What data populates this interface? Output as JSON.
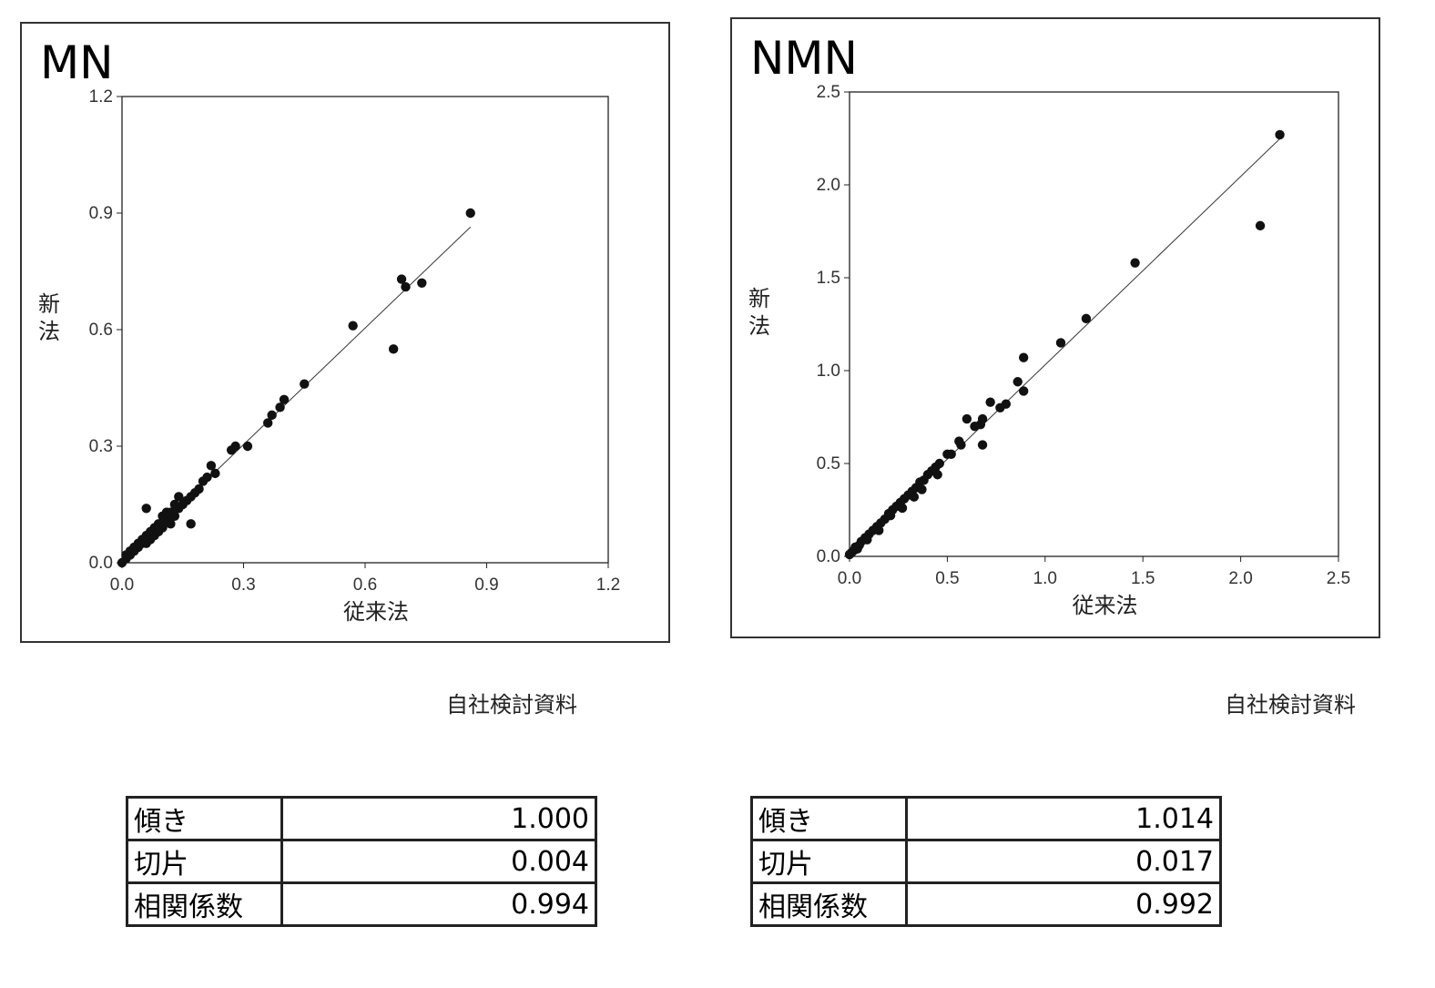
{
  "charts": [
    {
      "id": "mn",
      "title": "MN",
      "source": "自社検討資料",
      "stats": [
        {
          "label": "傾き",
          "value": "1.000"
        },
        {
          "label": "切片",
          "value": "0.004"
        },
        {
          "label": "相関係数",
          "value": "0.994"
        }
      ]
    },
    {
      "id": "nmn",
      "title": "NMN",
      "source": "自社検討資料",
      "stats": [
        {
          "label": "傾き",
          "value": "1.014"
        },
        {
          "label": "切片",
          "value": "0.017"
        },
        {
          "label": "相関係数",
          "value": "0.992"
        }
      ]
    }
  ],
  "chart_data": [
    {
      "type": "scatter",
      "title": "MN",
      "xlabel": "従来法",
      "ylabel": "新法",
      "xlim": [
        0,
        1.2
      ],
      "ylim": [
        0,
        1.2
      ],
      "xticks": [
        "0.0",
        "0.3",
        "0.6",
        "0.9",
        "1.2"
      ],
      "yticks": [
        "0.0",
        "0.3",
        "0.6",
        "0.9",
        "1.2"
      ],
      "grid": false,
      "regression": {
        "slope": 1.0,
        "intercept": 0.004,
        "x_range": [
          0,
          0.86
        ]
      },
      "points": [
        [
          0.86,
          0.9
        ],
        [
          0.69,
          0.73
        ],
        [
          0.7,
          0.71
        ],
        [
          0.74,
          0.72
        ],
        [
          0.57,
          0.61
        ],
        [
          0.67,
          0.55
        ],
        [
          0.45,
          0.46
        ],
        [
          0.4,
          0.42
        ],
        [
          0.39,
          0.4
        ],
        [
          0.37,
          0.38
        ],
        [
          0.36,
          0.36
        ],
        [
          0.31,
          0.3
        ],
        [
          0.28,
          0.3
        ],
        [
          0.27,
          0.29
        ],
        [
          0.23,
          0.23
        ],
        [
          0.22,
          0.25
        ],
        [
          0.21,
          0.22
        ],
        [
          0.2,
          0.21
        ],
        [
          0.19,
          0.19
        ],
        [
          0.18,
          0.18
        ],
        [
          0.17,
          0.17
        ],
        [
          0.16,
          0.16
        ],
        [
          0.15,
          0.15
        ],
        [
          0.14,
          0.14
        ],
        [
          0.13,
          0.15
        ],
        [
          0.13,
          0.12
        ],
        [
          0.12,
          0.13
        ],
        [
          0.11,
          0.11
        ],
        [
          0.1,
          0.12
        ],
        [
          0.1,
          0.09
        ],
        [
          0.09,
          0.1
        ],
        [
          0.08,
          0.09
        ],
        [
          0.08,
          0.07
        ],
        [
          0.07,
          0.08
        ],
        [
          0.07,
          0.06
        ],
        [
          0.06,
          0.14
        ],
        [
          0.06,
          0.07
        ],
        [
          0.05,
          0.05
        ],
        [
          0.05,
          0.06
        ],
        [
          0.04,
          0.04
        ],
        [
          0.04,
          0.05
        ],
        [
          0.03,
          0.03
        ],
        [
          0.03,
          0.04
        ],
        [
          0.02,
          0.02
        ],
        [
          0.02,
          0.03
        ],
        [
          0.01,
          0.01
        ],
        [
          0.01,
          0.02
        ],
        [
          0.0,
          0.0
        ],
        [
          0.17,
          0.1
        ],
        [
          0.14,
          0.17
        ],
        [
          0.12,
          0.1
        ],
        [
          0.11,
          0.13
        ],
        [
          0.09,
          0.08
        ],
        [
          0.06,
          0.05
        ]
      ]
    },
    {
      "type": "scatter",
      "title": "NMN",
      "xlabel": "従来法",
      "ylabel": "新法",
      "xlim": [
        0,
        2.5
      ],
      "ylim": [
        0,
        2.5
      ],
      "xticks": [
        "0.0",
        "0.5",
        "1.0",
        "1.5",
        "2.0",
        "2.5"
      ],
      "yticks": [
        "0.0",
        "0.5",
        "1.0",
        "1.5",
        "2.0",
        "2.5"
      ],
      "grid": false,
      "regression": {
        "slope": 1.014,
        "intercept": 0.017,
        "x_range": [
          0,
          2.2
        ]
      },
      "points": [
        [
          2.2,
          2.27
        ],
        [
          2.1,
          1.78
        ],
        [
          1.46,
          1.58
        ],
        [
          1.21,
          1.28
        ],
        [
          1.08,
          1.15
        ],
        [
          0.89,
          1.07
        ],
        [
          0.86,
          0.94
        ],
        [
          0.89,
          0.89
        ],
        [
          0.8,
          0.82
        ],
        [
          0.77,
          0.8
        ],
        [
          0.72,
          0.83
        ],
        [
          0.68,
          0.74
        ],
        [
          0.67,
          0.71
        ],
        [
          0.64,
          0.7
        ],
        [
          0.6,
          0.74
        ],
        [
          0.68,
          0.6
        ],
        [
          0.57,
          0.6
        ],
        [
          0.56,
          0.62
        ],
        [
          0.52,
          0.55
        ],
        [
          0.5,
          0.55
        ],
        [
          0.46,
          0.5
        ],
        [
          0.44,
          0.48
        ],
        [
          0.42,
          0.46
        ],
        [
          0.4,
          0.44
        ],
        [
          0.38,
          0.41
        ],
        [
          0.36,
          0.4
        ],
        [
          0.34,
          0.37
        ],
        [
          0.32,
          0.35
        ],
        [
          0.3,
          0.33
        ],
        [
          0.28,
          0.31
        ],
        [
          0.26,
          0.29
        ],
        [
          0.24,
          0.27
        ],
        [
          0.22,
          0.25
        ],
        [
          0.2,
          0.23
        ],
        [
          0.18,
          0.2
        ],
        [
          0.16,
          0.18
        ],
        [
          0.14,
          0.16
        ],
        [
          0.12,
          0.14
        ],
        [
          0.1,
          0.12
        ],
        [
          0.08,
          0.1
        ],
        [
          0.06,
          0.08
        ],
        [
          0.05,
          0.06
        ],
        [
          0.04,
          0.04
        ],
        [
          0.03,
          0.05
        ],
        [
          0.02,
          0.03
        ],
        [
          0.01,
          0.02
        ],
        [
          0.0,
          0.01
        ],
        [
          0.33,
          0.32
        ],
        [
          0.27,
          0.26
        ],
        [
          0.21,
          0.22
        ],
        [
          0.15,
          0.14
        ],
        [
          0.09,
          0.09
        ],
        [
          0.45,
          0.44
        ],
        [
          0.37,
          0.36
        ]
      ]
    }
  ]
}
